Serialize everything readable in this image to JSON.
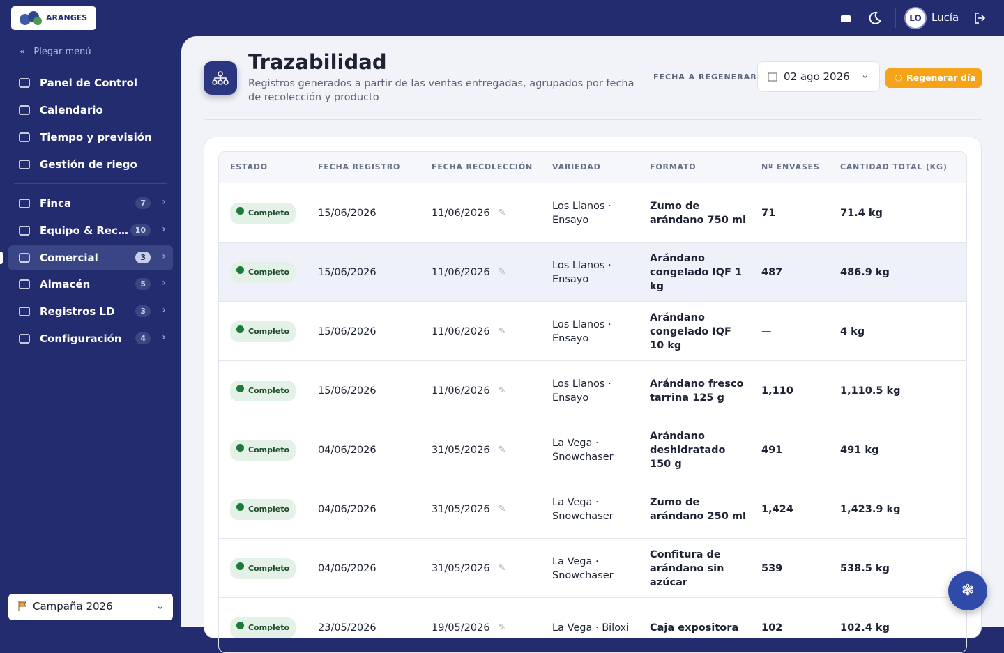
{
  "header": {
    "logo": "ARANGES",
    "user_initials": "LO",
    "user_name": "Lucía"
  },
  "sidebar": {
    "collapse": "Plegar menú",
    "items": [
      {
        "label": "Panel de Control"
      },
      {
        "label": "Calendario"
      },
      {
        "label": "Tiempo y previsión"
      },
      {
        "label": "Gestión de riego"
      }
    ],
    "groups": [
      {
        "label": "Finca",
        "badge": 7
      },
      {
        "label": "Equipo & Rec…",
        "badge": 10
      },
      {
        "label": "Comercial",
        "badge": 3,
        "active": true
      },
      {
        "label": "Almacén",
        "badge": 5
      },
      {
        "label": "Registros LD",
        "badge": 3
      },
      {
        "label": "Configuración",
        "badge": 4
      }
    ],
    "campaign": "Campaña 2026"
  },
  "page": {
    "title": "Trazabilidad",
    "subtitle": "Registros generados a partir de las ventas entregadas, agrupados por fecha de recolección y producto",
    "date_label": "FECHA A REGENERAR",
    "date": "02 ago 2026",
    "button": "Regenerar día"
  },
  "table": {
    "columns": [
      "ESTADO",
      "FECHA REGISTRO",
      "FECHA RECOLECCIÓN",
      "VARIEDAD",
      "FORMATO",
      "Nº ENVASES",
      "CANTIDAD TOTAL (KG)"
    ],
    "rows": [
      [
        "Completo",
        "15/06/2026",
        "11/06/2026",
        "Los Llanos · Ensayo",
        "Zumo de arándano 750 ml",
        "71",
        "71.4 kg"
      ],
      [
        "Completo",
        "15/06/2026",
        "11/06/2026",
        "Los Llanos · Ensayo",
        "Arándano congelado IQF 1 kg",
        "487",
        "486.9 kg"
      ],
      [
        "Completo",
        "15/06/2026",
        "11/06/2026",
        "Los Llanos · Ensayo",
        "Arándano congelado IQF 10 kg",
        "—",
        "4 kg"
      ],
      [
        "Completo",
        "15/06/2026",
        "11/06/2026",
        "Los Llanos · Ensayo",
        "Arándano fresco tarrina 125 g",
        "1,110",
        "1,110.5 kg"
      ],
      [
        "Completo",
        "04/06/2026",
        "31/05/2026",
        "La Vega · Snowchaser",
        "Arándano deshidratado 150 g",
        "491",
        "491 kg"
      ],
      [
        "Completo",
        "04/06/2026",
        "31/05/2026",
        "La Vega · Snowchaser",
        "Zumo de arándano 250 ml",
        "1,424",
        "1,423.9 kg"
      ],
      [
        "Completo",
        "04/06/2026",
        "31/05/2026",
        "La Vega · Snowchaser",
        "Confitura de arándano sin azúcar",
        "539",
        "538.5 kg"
      ],
      [
        "Completo",
        "23/05/2026",
        "19/05/2026",
        "La Vega · Biloxi",
        "Caja expositora",
        "102",
        "102.4 kg"
      ]
    ]
  }
}
